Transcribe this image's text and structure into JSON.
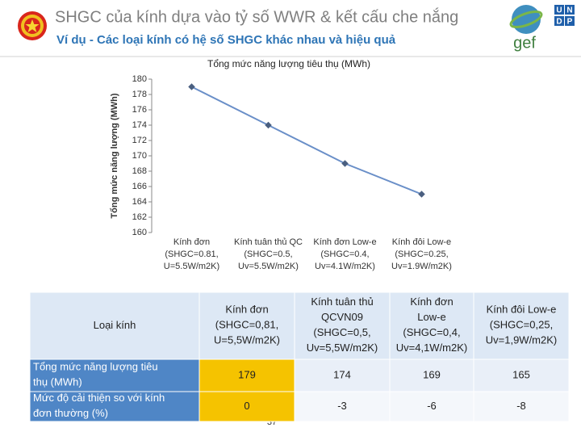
{
  "header": {
    "title": "SHGC của kính dựa vào tỷ số WWR & kết cấu che nắng",
    "subtitle": "Ví dụ - Các loại kính có hệ số SHGC khác nhau và hiệu quả",
    "gef": "gef",
    "undp": [
      "U",
      "N",
      "D",
      "P"
    ]
  },
  "chart_data": {
    "type": "line",
    "title": "Tổng mức năng lượng tiêu thụ (MWh)",
    "y_label": "Tổng mức năng lượng (MWh)",
    "categories": [
      "Kính đơn\n(SHGC=0.81,\nU=5.5W/m2K)",
      "Kính tuân thủ QC\n(SHGC=0.5,\nUv=5.5W/m2K)",
      "Kính đơn Low-e\n(SHGC=0.4,\nUv=4.1W/m2K)",
      "Kính đôi Low-e\n(SHGC=0.25,\nUv=1.9W/m2K)"
    ],
    "values": [
      179,
      174,
      169,
      165
    ],
    "color": "#6a8fc8",
    "marker_color": "#4a5f80",
    "ylim": [
      160,
      180
    ],
    "yticks": [
      160,
      162,
      164,
      166,
      168,
      170,
      172,
      174,
      176,
      178,
      180
    ]
  },
  "table": {
    "header": [
      "Loại kính",
      "Kính đơn\n(SHGC=0,81,\nU=5,5W/m2K)",
      "Kính tuân thủ\nQCVN09\n(SHGC=0,5,\nUv=5,5W/m2K)",
      "Kính đơn\nLow-e\n(SHGC=0,4,\nUv=4,1W/m2K)",
      "Kính đôi Low-e\n(SHGC=0,25,\nUv=1,9W/m2K)"
    ],
    "rows": [
      [
        "Tổng mức năng lượng tiêu\nthụ (MWh)",
        "179",
        "174",
        "169",
        "165"
      ],
      [
        "Mức độ cải thiện so với kính\nđơn thường (%)",
        "0",
        "-3",
        "-6",
        "-8"
      ]
    ]
  },
  "page_number": "37"
}
